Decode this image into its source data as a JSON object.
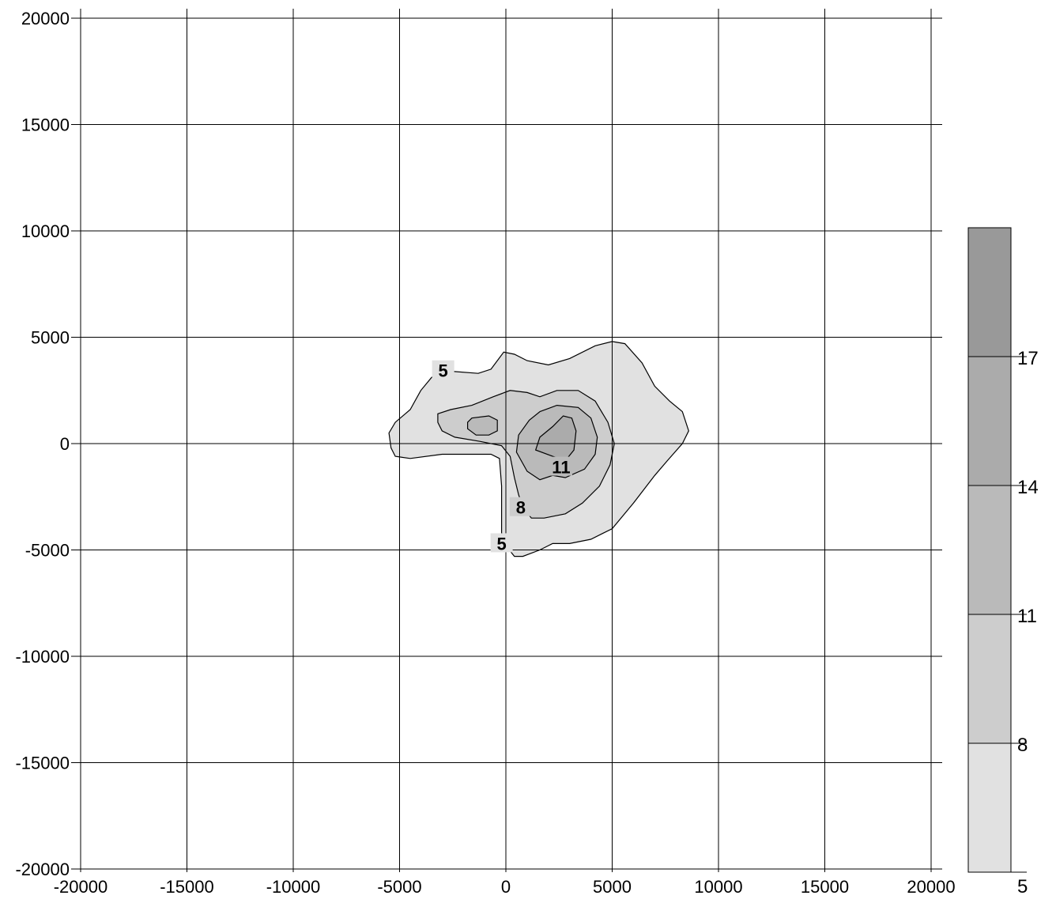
{
  "chart_data": {
    "type": "contour",
    "title": "",
    "xlabel": "",
    "ylabel": "",
    "xlim": [
      -20000,
      20000
    ],
    "ylim": [
      -20000,
      20000
    ],
    "grid": true,
    "x_ticks": [
      -20000,
      -15000,
      -10000,
      -5000,
      0,
      5000,
      10000,
      15000,
      20000
    ],
    "y_ticks": [
      -20000,
      -15000,
      -10000,
      -5000,
      0,
      5000,
      10000,
      15000,
      20000
    ],
    "x_tick_labels": [
      "-20000",
      "-15000",
      "-10000",
      "-5000",
      "0",
      "5000",
      "10000",
      "15000",
      "20000"
    ],
    "y_tick_labels": [
      "-20000",
      "-15000",
      "-10000",
      "-5000",
      "0",
      "5000",
      "10000",
      "15000",
      "20000"
    ],
    "contour_levels": [
      5,
      8,
      11,
      14,
      17
    ],
    "fill_colors": [
      "#e1e1e1",
      "#cdcdcd",
      "#bababa",
      "#ababab",
      "#999999"
    ],
    "contours": [
      {
        "level": 5,
        "points": [
          [
            -5400,
            -200
          ],
          [
            -5500,
            500
          ],
          [
            -5200,
            1000
          ],
          [
            -4500,
            1600
          ],
          [
            -4000,
            2500
          ],
          [
            -3500,
            3100
          ],
          [
            -3000,
            3500
          ],
          [
            -2600,
            3400
          ],
          [
            -1300,
            3300
          ],
          [
            -700,
            3500
          ],
          [
            -100,
            4300
          ],
          [
            400,
            4200
          ],
          [
            1000,
            3900
          ],
          [
            2000,
            3700
          ],
          [
            3000,
            4000
          ],
          [
            4200,
            4600
          ],
          [
            5000,
            4800
          ],
          [
            5600,
            4700
          ],
          [
            6400,
            3800
          ],
          [
            7000,
            2700
          ],
          [
            7700,
            2000
          ],
          [
            8300,
            1500
          ],
          [
            8600,
            600
          ],
          [
            8300,
            0
          ],
          [
            7600,
            -800
          ],
          [
            7000,
            -1500
          ],
          [
            6000,
            -2800
          ],
          [
            5000,
            -4000
          ],
          [
            4000,
            -4500
          ],
          [
            3000,
            -4700
          ],
          [
            2200,
            -4700
          ],
          [
            1600,
            -5000
          ],
          [
            800,
            -5300
          ],
          [
            400,
            -5300
          ],
          [
            0,
            -4800
          ],
          [
            -200,
            -4200
          ],
          [
            -200,
            -2000
          ],
          [
            -300,
            -700
          ],
          [
            -700,
            -500
          ],
          [
            -3000,
            -500
          ],
          [
            -4500,
            -700
          ],
          [
            -5200,
            -600
          ]
        ],
        "label_positions": [
          [
            -2950,
            3430
          ],
          [
            -200,
            -4700
          ]
        ]
      },
      {
        "level": 8,
        "points": [
          [
            -3200,
            1000
          ],
          [
            -3200,
            1400
          ],
          [
            -2600,
            1600
          ],
          [
            -1600,
            1800
          ],
          [
            -600,
            2200
          ],
          [
            200,
            2500
          ],
          [
            1000,
            2400
          ],
          [
            1600,
            2200
          ],
          [
            2400,
            2500
          ],
          [
            3400,
            2500
          ],
          [
            4200,
            2000
          ],
          [
            4800,
            1000
          ],
          [
            5100,
            0
          ],
          [
            4900,
            -1000
          ],
          [
            4400,
            -2000
          ],
          [
            3600,
            -2800
          ],
          [
            2800,
            -3300
          ],
          [
            1800,
            -3500
          ],
          [
            1200,
            -3500
          ],
          [
            800,
            -3000
          ],
          [
            600,
            -2400
          ],
          [
            400,
            -1600
          ],
          [
            200,
            -600
          ],
          [
            -200,
            -100
          ],
          [
            -1200,
            100
          ],
          [
            -2400,
            300
          ],
          [
            -3000,
            600
          ]
        ],
        "label_positions": [
          [
            700,
            -3000
          ]
        ]
      },
      {
        "level": 11,
        "points": [
          [
            -1800,
            1000
          ],
          [
            -1600,
            1200
          ],
          [
            -800,
            1300
          ],
          [
            -400,
            1100
          ],
          [
            -400,
            600
          ],
          [
            -800,
            400
          ],
          [
            -1400,
            400
          ],
          [
            -1800,
            700
          ]
        ],
        "label_positions": []
      },
      {
        "level": 11,
        "points": [
          [
            1600,
            1500
          ],
          [
            2400,
            1800
          ],
          [
            3400,
            1700
          ],
          [
            4000,
            1200
          ],
          [
            4300,
            300
          ],
          [
            4200,
            -500
          ],
          [
            3700,
            -1200
          ],
          [
            2800,
            -1600
          ],
          [
            2200,
            -1500
          ],
          [
            1600,
            -1700
          ],
          [
            1000,
            -1300
          ],
          [
            500,
            -400
          ],
          [
            600,
            400
          ],
          [
            1100,
            1100
          ]
        ],
        "label_positions": [
          [
            2600,
            -1100
          ]
        ]
      },
      {
        "level": 14,
        "points": [
          [
            1400,
            -300
          ],
          [
            1600,
            300
          ],
          [
            2200,
            800
          ],
          [
            2700,
            1300
          ],
          [
            3100,
            1200
          ],
          [
            3300,
            600
          ],
          [
            3200,
            -300
          ],
          [
            2800,
            -800
          ],
          [
            2200,
            -600
          ]
        ],
        "label_positions": []
      }
    ],
    "legend": {
      "position": "right",
      "tick_values": [
        5,
        8,
        11,
        14,
        17
      ],
      "tick_labels": [
        "5",
        "8",
        "11",
        "14",
        "17"
      ],
      "range": [
        5,
        20
      ]
    }
  }
}
